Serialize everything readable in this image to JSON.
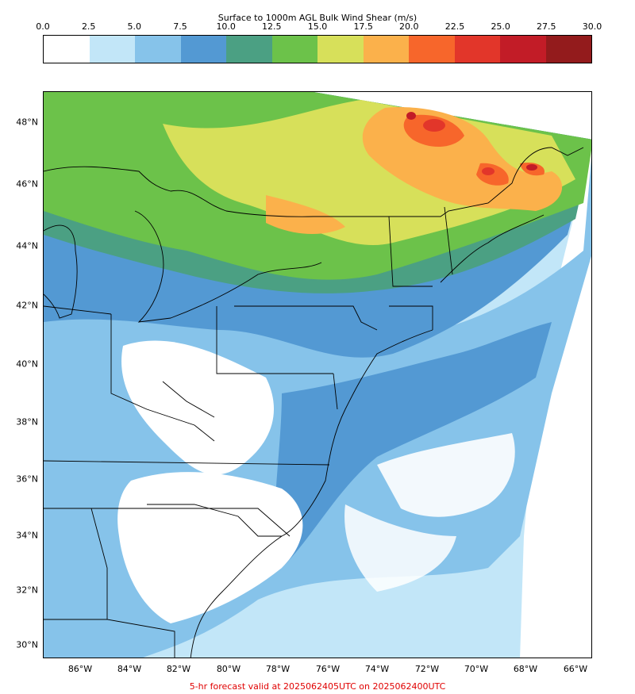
{
  "colorbar": {
    "title": "Surface to 1000m AGL Bulk Wind Shear (m/s)",
    "ticks": [
      "0.0",
      "2.5",
      "5.0",
      "7.5",
      "10.0",
      "12.5",
      "15.0",
      "17.5",
      "20.0",
      "22.5",
      "25.0",
      "27.5",
      "30.0"
    ],
    "colors": [
      "#ffffff",
      "#c2e6f8",
      "#86c3ea",
      "#5399d3",
      "#4ba083",
      "#6cc24a",
      "#d7e05a",
      "#fbb14b",
      "#f7662b",
      "#e2362a",
      "#c21c27",
      "#931b1c"
    ]
  },
  "map": {
    "lat_labels": [
      "48°N",
      "46°N",
      "44°N",
      "42°N",
      "40°N",
      "38°N",
      "36°N",
      "34°N",
      "32°N",
      "30°N"
    ],
    "lon_labels": [
      "86°W",
      "84°W",
      "82°W",
      "80°W",
      "78°W",
      "76°W",
      "74°W",
      "72°W",
      "70°W",
      "68°W",
      "66°W"
    ]
  },
  "caption": "5-hr forecast valid at 2025062405UTC on 2025062400UTC"
}
